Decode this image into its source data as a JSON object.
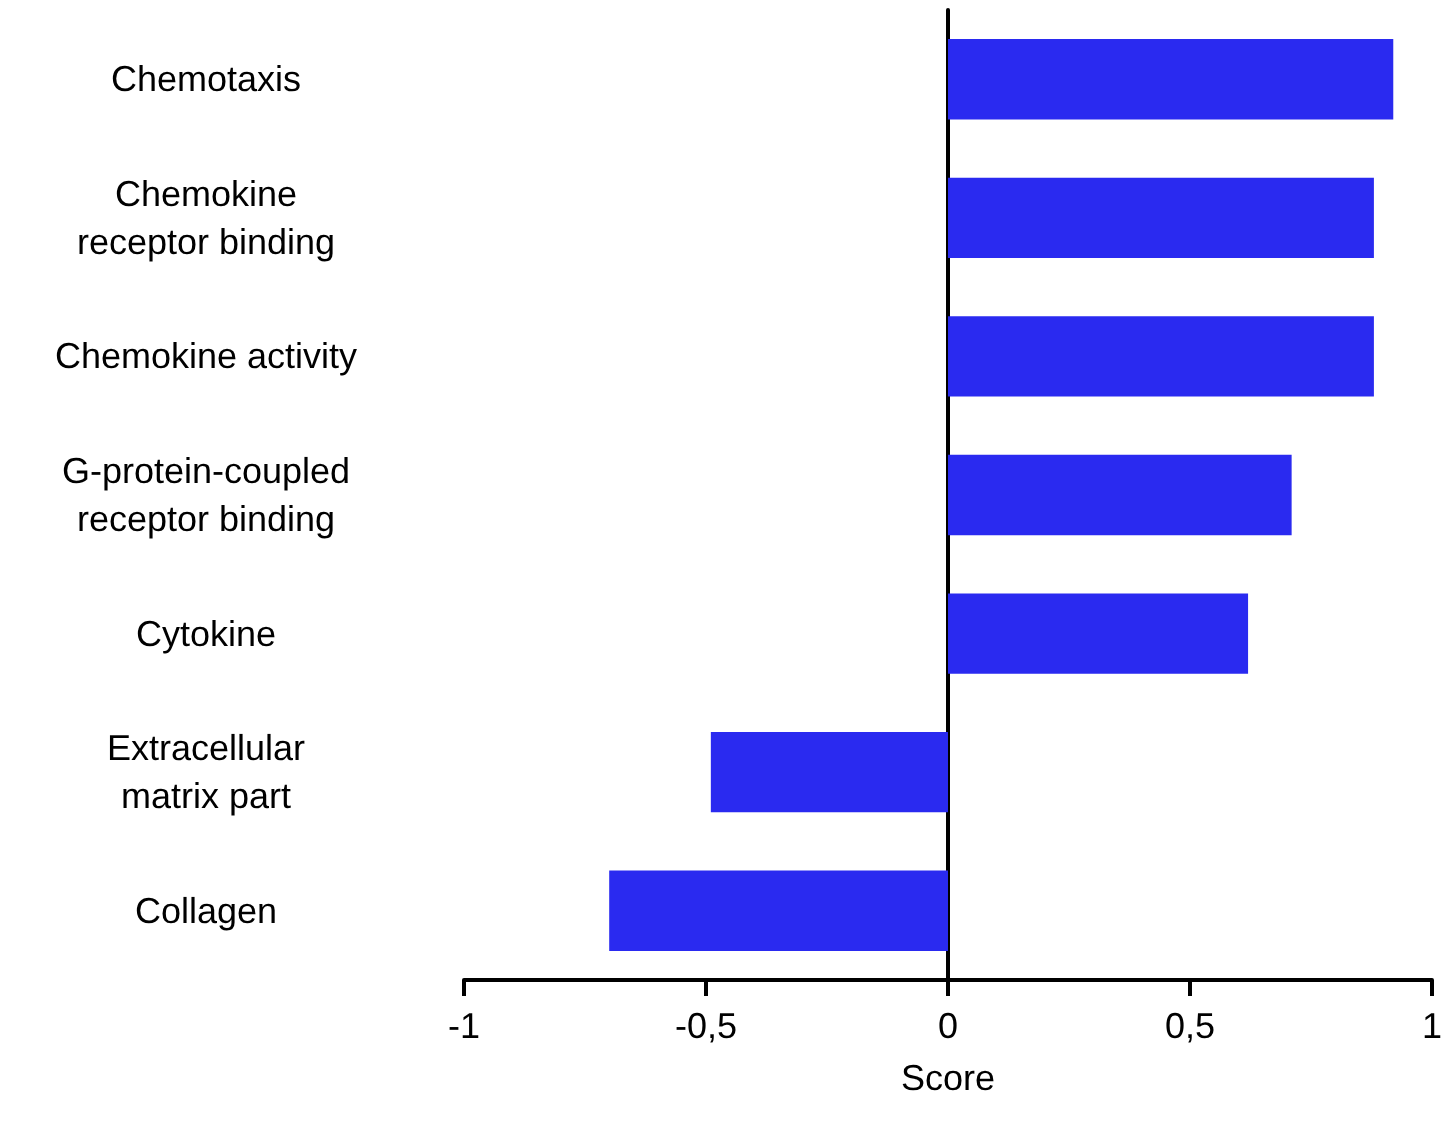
{
  "chart_data": {
    "type": "bar",
    "orientation": "horizontal",
    "categories": [
      "Chemotaxis",
      "Chemokine\nreceptor binding",
      "Chemokine activity",
      "G-protein-coupled\nreceptor binding",
      "Cytokine",
      "Extracellular\nmatrix part",
      "Collagen"
    ],
    "values": [
      0.92,
      0.88,
      0.88,
      0.71,
      0.62,
      -0.49,
      -0.7
    ],
    "color": "#2a2af0",
    "xlim": [
      -1,
      1
    ],
    "xticks": [
      -1,
      {
        "value": -0.5,
        "label": "-0,5"
      },
      0,
      {
        "value": 0.5,
        "label": "0,5"
      },
      1
    ],
    "xlabel": "Score"
  }
}
